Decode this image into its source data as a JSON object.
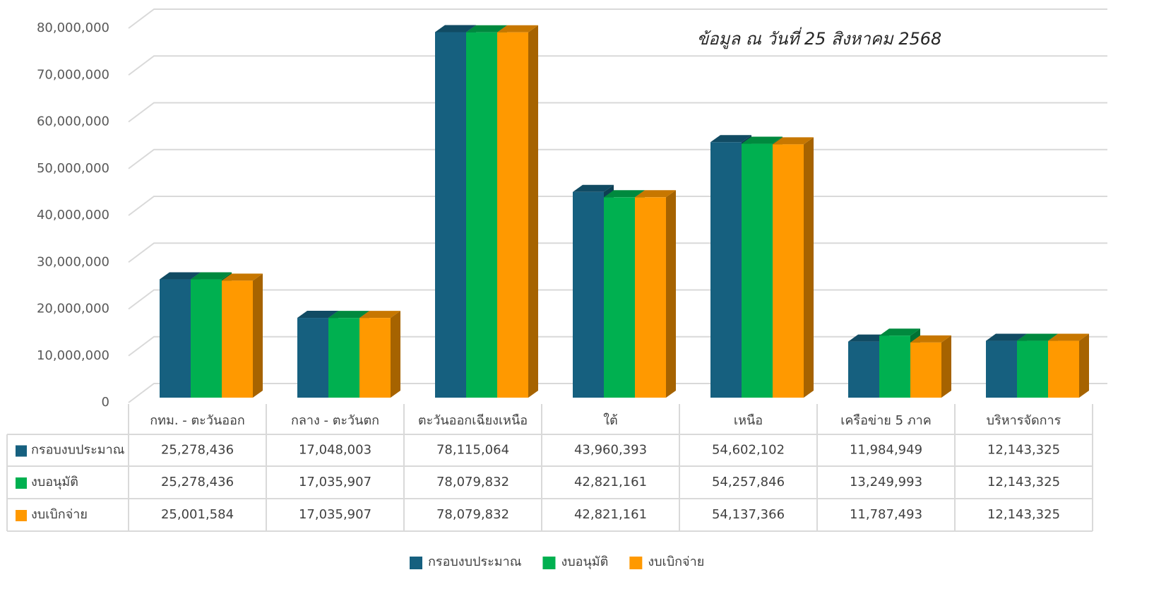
{
  "chart_data": {
    "type": "bar3d",
    "annotation": "ข้อมูล ณ วันที่ 25 สิงหาคม 2568",
    "categories": [
      "กทม. - ตะวันออก",
      "กลาง - ตะวันตก",
      "ตะวันออกเฉียงเหนือ",
      "ใต้",
      "เหนือ",
      "เครือข่าย 5 ภาค",
      "บริหารจัดการ"
    ],
    "series": [
      {
        "name": "กรอบงบประมาณ",
        "color": "#16607f",
        "values": [
          25278436,
          17048003,
          78115064,
          43960393,
          54602102,
          11984949,
          12143325
        ],
        "value_labels": [
          "25,278,436",
          "17,048,003",
          "78,115,064",
          "43,960,393",
          "54,602,102",
          "11,984,949",
          "12,143,325"
        ]
      },
      {
        "name": "งบอนุมัติ",
        "color": "#00b050",
        "values": [
          25278436,
          17035907,
          78079832,
          42821161,
          54257846,
          13249993,
          12143325
        ],
        "value_labels": [
          "25,278,436",
          "17,035,907",
          "78,079,832",
          "42,821,161",
          "54,257,846",
          "13,249,993",
          "12,143,325"
        ]
      },
      {
        "name": "งบเบิกจ่าย",
        "color": "#ff9900",
        "values": [
          25001584,
          17035907,
          78079832,
          42821161,
          54137366,
          11787493,
          12143325
        ],
        "value_labels": [
          "25,001,584",
          "17,035,907",
          "78,079,832",
          "42,821,161",
          "54,137,366",
          "11,787,493",
          "12,143,325"
        ]
      }
    ],
    "ylim": [
      0,
      80000000
    ],
    "yticks": [
      0,
      {
        "value": 10000000,
        "label": "10,000,000"
      },
      {
        "value": 20000000,
        "label": "20,000,000"
      },
      {
        "value": 30000000,
        "label": "30,000,000"
      },
      {
        "value": 40000000,
        "label": "40,000,000"
      },
      {
        "value": 50000000,
        "label": "50,000,000"
      },
      {
        "value": 60000000,
        "label": "60,000,000"
      },
      {
        "value": 70000000,
        "label": "70,000,000"
      },
      {
        "value": 80000000,
        "label": "80,000,000"
      }
    ],
    "grid": true,
    "legend": "bottom",
    "data_table": true
  }
}
